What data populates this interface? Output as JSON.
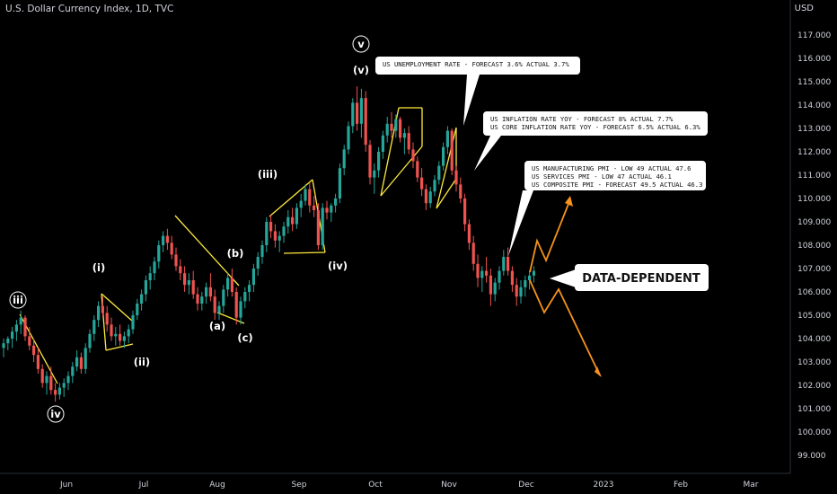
{
  "header": {
    "title": "U.S. Dollar Currency Index, 1D, TVC",
    "currency": "USD"
  },
  "chart_data": {
    "type": "candlestick",
    "title": "U.S. Dollar Currency Index, 1D, TVC",
    "ylabel": "USD",
    "ylim": [
      98.4,
      118.4
    ],
    "y_ticks": [
      "99.000",
      "100.000",
      "101.000",
      "102.000",
      "103.000",
      "104.000",
      "105.000",
      "106.000",
      "107.000",
      "108.000",
      "109.000",
      "110.000",
      "111.000",
      "112.000",
      "113.000",
      "114.000",
      "115.000",
      "116.000",
      "117.000"
    ],
    "x_ticks": [
      "Jun",
      "Jul",
      "Aug",
      "Sep",
      "Oct",
      "Nov",
      "Dec",
      "2023",
      "Feb",
      "Mar"
    ],
    "series": [
      {
        "values": [
          [
            103.6,
            104.0,
            103.2,
            103.8
          ],
          [
            103.8,
            104.1,
            103.5,
            104.0
          ],
          [
            104.0,
            104.5,
            103.6,
            104.3
          ],
          [
            104.3,
            104.8,
            103.9,
            104.6
          ],
          [
            104.6,
            105.2,
            104.2,
            104.9
          ],
          [
            104.9,
            105.0,
            103.9,
            104.1
          ],
          [
            104.1,
            104.5,
            103.5,
            103.7
          ],
          [
            103.7,
            104.0,
            103.0,
            103.3
          ],
          [
            103.3,
            103.6,
            102.5,
            102.7
          ],
          [
            102.7,
            102.9,
            101.9,
            102.1
          ],
          [
            102.1,
            102.6,
            101.6,
            102.4
          ],
          [
            102.4,
            102.8,
            101.6,
            101.8
          ],
          [
            101.8,
            102.1,
            101.3,
            101.6
          ],
          [
            101.6,
            102.1,
            101.4,
            101.9
          ],
          [
            101.9,
            102.3,
            101.5,
            102.1
          ],
          [
            102.1,
            102.6,
            101.8,
            102.4
          ],
          [
            102.4,
            103.0,
            102.1,
            102.8
          ],
          [
            102.8,
            103.5,
            102.6,
            103.2
          ],
          [
            103.2,
            103.4,
            102.5,
            102.7
          ],
          [
            102.7,
            103.8,
            102.5,
            103.6
          ],
          [
            103.6,
            104.4,
            103.4,
            104.2
          ],
          [
            104.2,
            105.0,
            103.9,
            104.8
          ],
          [
            104.8,
            105.6,
            104.5,
            105.4
          ],
          [
            105.4,
            105.8,
            104.9,
            105.1
          ],
          [
            105.1,
            105.4,
            104.3,
            104.6
          ],
          [
            104.6,
            104.9,
            103.9,
            104.1
          ],
          [
            104.1,
            104.5,
            103.7,
            104.2
          ],
          [
            104.2,
            104.6,
            103.7,
            103.9
          ],
          [
            103.9,
            104.3,
            103.6,
            104.1
          ],
          [
            104.1,
            104.6,
            103.8,
            104.4
          ],
          [
            104.4,
            105.2,
            104.2,
            105.0
          ],
          [
            105.0,
            105.7,
            104.8,
            105.5
          ],
          [
            105.5,
            106.1,
            105.2,
            105.9
          ],
          [
            105.9,
            106.7,
            105.6,
            106.5
          ],
          [
            106.5,
            107.1,
            106.1,
            106.8
          ],
          [
            106.8,
            107.5,
            106.5,
            107.3
          ],
          [
            107.3,
            108.2,
            107.0,
            108.0
          ],
          [
            108.0,
            108.6,
            107.7,
            108.4
          ],
          [
            108.4,
            108.7,
            107.8,
            108.1
          ],
          [
            108.1,
            108.4,
            107.4,
            107.6
          ],
          [
            107.6,
            107.9,
            106.9,
            107.1
          ],
          [
            107.1,
            107.4,
            106.5,
            106.8
          ],
          [
            106.8,
            107.1,
            106.0,
            106.3
          ],
          [
            106.3,
            106.8,
            105.9,
            106.5
          ],
          [
            106.5,
            106.9,
            105.7,
            105.9
          ],
          [
            105.9,
            106.2,
            105.2,
            105.5
          ],
          [
            105.5,
            106.0,
            105.2,
            105.8
          ],
          [
            105.8,
            106.4,
            105.5,
            106.2
          ],
          [
            106.2,
            106.8,
            105.6,
            105.8
          ],
          [
            105.8,
            106.1,
            104.8,
            105.1
          ],
          [
            105.1,
            105.6,
            104.8,
            105.4
          ],
          [
            105.4,
            106.3,
            105.1,
            106.1
          ],
          [
            106.1,
            106.8,
            105.8,
            106.6
          ],
          [
            106.6,
            107.0,
            105.8,
            106.0
          ],
          [
            106.0,
            106.2,
            104.6,
            104.9
          ],
          [
            104.9,
            105.8,
            104.6,
            105.6
          ],
          [
            105.6,
            106.2,
            105.3,
            106.0
          ],
          [
            106.0,
            106.5,
            105.6,
            106.3
          ],
          [
            106.3,
            107.2,
            106.0,
            107.0
          ],
          [
            107.0,
            107.7,
            106.7,
            107.5
          ],
          [
            107.5,
            108.2,
            107.2,
            108.0
          ],
          [
            108.0,
            109.2,
            107.7,
            109.0
          ],
          [
            109.0,
            109.3,
            108.3,
            108.6
          ],
          [
            108.6,
            108.9,
            107.9,
            108.2
          ],
          [
            108.2,
            108.6,
            107.7,
            108.4
          ],
          [
            108.4,
            109.0,
            108.1,
            108.8
          ],
          [
            108.8,
            109.5,
            108.5,
            109.2
          ],
          [
            109.2,
            109.6,
            108.6,
            108.9
          ],
          [
            108.9,
            109.8,
            108.7,
            109.6
          ],
          [
            109.6,
            110.2,
            109.2,
            109.9
          ],
          [
            109.9,
            110.6,
            109.7,
            110.4
          ],
          [
            110.4,
            110.7,
            109.4,
            109.7
          ],
          [
            109.7,
            110.1,
            109.2,
            109.5
          ],
          [
            109.5,
            109.8,
            107.8,
            108.0
          ],
          [
            108.0,
            109.8,
            107.8,
            109.6
          ],
          [
            109.6,
            109.9,
            109.1,
            109.4
          ],
          [
            109.4,
            109.8,
            109.0,
            109.7
          ],
          [
            109.7,
            110.2,
            109.4,
            110.0
          ],
          [
            110.0,
            111.5,
            109.8,
            111.3
          ],
          [
            111.3,
            112.3,
            111.0,
            112.1
          ],
          [
            112.1,
            113.3,
            111.9,
            113.1
          ],
          [
            113.1,
            114.3,
            112.8,
            114.1
          ],
          [
            114.1,
            114.8,
            112.9,
            113.2
          ],
          [
            113.2,
            114.7,
            112.6,
            114.3
          ],
          [
            114.3,
            114.6,
            112.0,
            112.3
          ],
          [
            112.3,
            112.5,
            110.6,
            110.9
          ],
          [
            110.9,
            111.5,
            110.2,
            111.2
          ],
          [
            111.2,
            112.2,
            110.9,
            112.0
          ],
          [
            112.0,
            112.9,
            111.7,
            112.7
          ],
          [
            112.7,
            113.5,
            112.4,
            113.2
          ],
          [
            113.2,
            113.7,
            112.6,
            112.9
          ],
          [
            112.9,
            113.6,
            112.6,
            113.4
          ],
          [
            113.4,
            113.5,
            112.4,
            112.6
          ],
          [
            112.6,
            113.0,
            111.9,
            112.8
          ],
          [
            112.8,
            113.1,
            111.9,
            112.1
          ],
          [
            112.1,
            112.4,
            111.3,
            111.6
          ],
          [
            111.6,
            111.8,
            110.7,
            110.9
          ],
          [
            110.9,
            111.3,
            110.1,
            110.4
          ],
          [
            110.4,
            110.6,
            109.5,
            109.8
          ],
          [
            109.8,
            110.5,
            109.6,
            110.3
          ],
          [
            110.3,
            111.0,
            110.1,
            110.8
          ],
          [
            110.8,
            111.6,
            110.6,
            111.4
          ],
          [
            111.4,
            112.4,
            111.2,
            112.2
          ],
          [
            112.2,
            113.1,
            111.9,
            112.9
          ],
          [
            112.9,
            113.0,
            111.0,
            111.2
          ],
          [
            111.2,
            111.4,
            110.3,
            110.6
          ],
          [
            110.6,
            110.9,
            109.8,
            110.0
          ],
          [
            110.0,
            110.2,
            108.6,
            108.9
          ],
          [
            108.9,
            109.1,
            107.8,
            108.1
          ],
          [
            108.1,
            108.4,
            106.9,
            107.2
          ],
          [
            107.2,
            107.6,
            106.2,
            106.6
          ],
          [
            106.6,
            107.1,
            106.0,
            106.9
          ],
          [
            106.9,
            107.5,
            106.4,
            106.7
          ],
          [
            106.7,
            107.0,
            105.4,
            105.9
          ],
          [
            105.9,
            106.6,
            105.6,
            106.4
          ],
          [
            106.4,
            107.1,
            106.1,
            106.9
          ],
          [
            106.9,
            107.8,
            106.7,
            107.5
          ],
          [
            107.5,
            107.9,
            106.7,
            106.9
          ],
          [
            106.9,
            107.1,
            106.0,
            106.3
          ],
          [
            106.3,
            106.6,
            105.4,
            105.8
          ],
          [
            105.8,
            106.5,
            105.5,
            106.2
          ],
          [
            106.2,
            106.7,
            105.8,
            106.5
          ],
          [
            106.5,
            106.9,
            106.1,
            106.7
          ],
          [
            106.7,
            107.1,
            106.4,
            106.9
          ]
        ]
      }
    ],
    "waves": [
      "iii",
      "iv",
      "(i)",
      "(ii)",
      "(a)",
      "(b)",
      "(c)",
      "(iii)",
      "(iv)",
      "v",
      "(v)"
    ],
    "annotations": [
      {
        "lines": [
          "US UNEMPLOYMENT RATE - FORECAST 3.6% ACTUAL 3.7%"
        ]
      },
      {
        "lines": [
          "US INFLATION RATE YOY - FORECAST 8% ACTUAL 7.7%",
          "US CORE INFLATION RATE YOY -  FORECAST 6.5% ACTUAL 6.3%"
        ]
      },
      {
        "lines": [
          "US MANUFACTURING PMI - LOW 49 ACTUAL 47.6",
          "US SERVICES PMI - LOW 47 ACTUAL 46.1",
          "US COMPOSITE PMI -  FORECAST 49.5 ACTUAL 46.3"
        ]
      },
      {
        "lines": [
          "DATA-DEPENDENT"
        ]
      }
    ],
    "colors": {
      "up": "#26a69a",
      "down": "#ef5350",
      "background": "#000000",
      "projection": "#f7931a",
      "channel": "#ffeb3b",
      "text": "#d1d4dc"
    }
  }
}
